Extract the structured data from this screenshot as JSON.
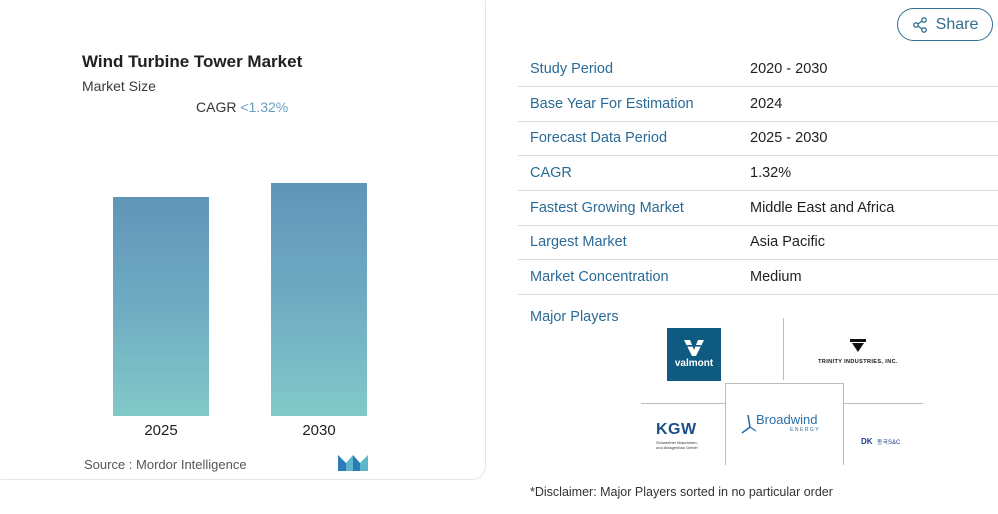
{
  "card": {
    "title": "Wind Turbine Tower Market",
    "subtitle": "Market Size",
    "cagr_label": "CAGR",
    "cagr_value": "<1.32%",
    "source_label": "Source :",
    "source_value": "Mordor Intelligence"
  },
  "chart_data": {
    "type": "bar",
    "categories": [
      "2025",
      "2030"
    ],
    "values": [
      1.0,
      1.066
    ],
    "title": "Wind Turbine Tower Market",
    "xlabel": "",
    "ylabel": "",
    "grid": false,
    "colors": [
      "#6195b8",
      "#82c9c9"
    ]
  },
  "share": {
    "label": "Share",
    "icon": "share-icon"
  },
  "info": [
    {
      "key": "Study Period",
      "value": "2020 - 2030"
    },
    {
      "key": "Base Year For Estimation",
      "value": "2024"
    },
    {
      "key": "Forecast Data Period",
      "value": "2025 - 2030"
    },
    {
      "key": "CAGR",
      "value": "1.32%"
    },
    {
      "key": "Fastest Growing Market",
      "value": "Middle East and Africa"
    },
    {
      "key": "Largest Market",
      "value": "Asia Pacific"
    },
    {
      "key": "Market Concentration",
      "value": "Medium"
    }
  ],
  "players": {
    "title": "Major Players",
    "logos": {
      "valmont": "valmont",
      "trinity": "TRINITY INDUSTRIES, INC.",
      "kgw_main": "KGW",
      "kgw_sub1": "Schweriner Maschinen-",
      "kgw_sub2": "und Anlagenbau GmbH",
      "broadwind": "Broadwind",
      "broadwind_sub": "ENERGY",
      "dk": "DK",
      "dk_sub": "동국S&C"
    }
  },
  "disclaimer": "*Disclaimer: Major Players sorted in no particular order"
}
